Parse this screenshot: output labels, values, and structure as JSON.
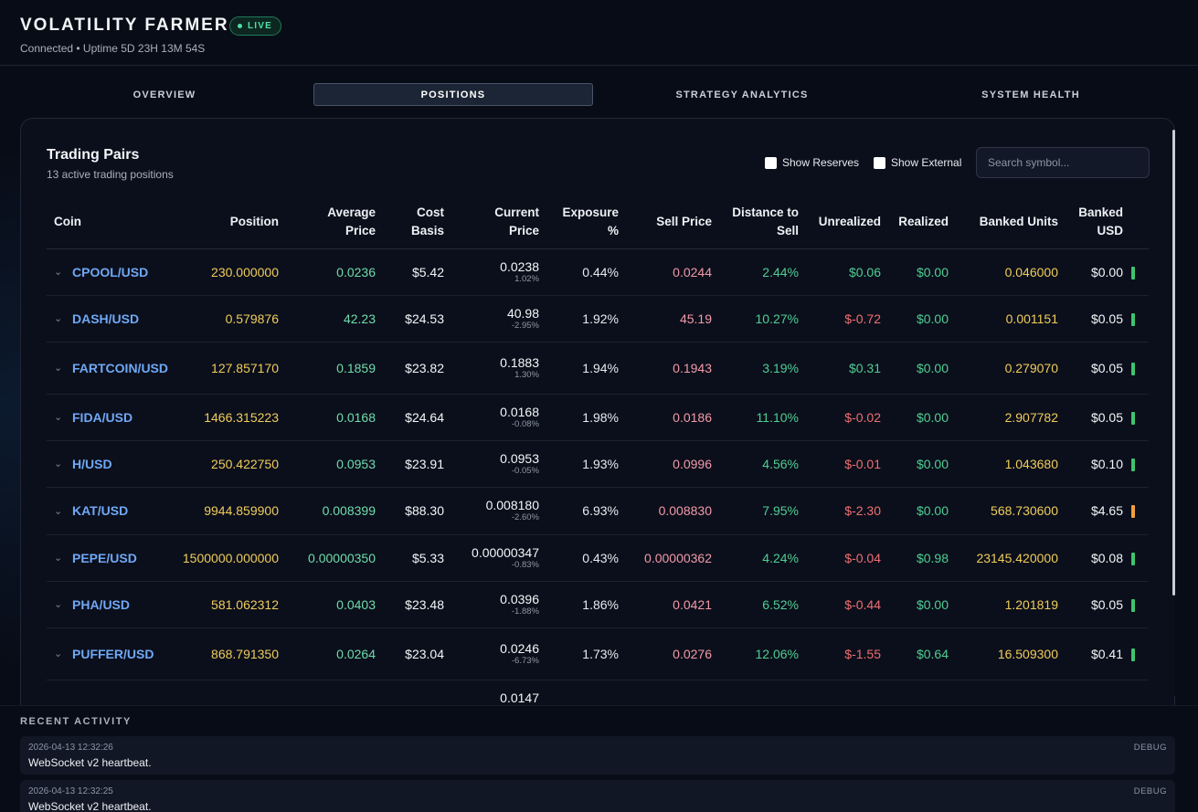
{
  "header": {
    "title": "VOLATILITY FARMER",
    "badge": "LIVE",
    "status": "Connected • Uptime 5D 23H 13M 54S"
  },
  "tabs": [
    {
      "label": "OVERVIEW",
      "active": false
    },
    {
      "label": "POSITIONS",
      "active": true
    },
    {
      "label": "STRATEGY ANALYTICS",
      "active": false
    },
    {
      "label": "SYSTEM HEALTH",
      "active": false
    }
  ],
  "panel": {
    "title": "Trading Pairs",
    "subtitle": "13 active trading positions",
    "show_reserves_label": "Show Reserves",
    "show_external_label": "Show External",
    "search_placeholder": "Search symbol..."
  },
  "columns": [
    "Coin",
    "Position",
    "Average Price",
    "Cost Basis",
    "Current Price",
    "Exposure %",
    "Sell Price",
    "Distance to Sell",
    "Unrealized",
    "Realized",
    "Banked Units",
    "Banked USD"
  ],
  "rows": [
    {
      "coin": "CPOOL/USD",
      "position": "230.000000",
      "avg": "0.0236",
      "cost": "$5.42",
      "cur": "0.0238",
      "cur_change": "1.02%",
      "exposure": "0.44%",
      "sell": "0.0244",
      "distance": "2.44%",
      "unrealized": "$0.06",
      "unrealized_sign": "pos",
      "realized": "$0.00",
      "banked_units": "0.046000",
      "banked_usd": "$0.00",
      "status_color": "#3ec46d"
    },
    {
      "coin": "DASH/USD",
      "position": "0.579876",
      "avg": "42.23",
      "cost": "$24.53",
      "cur": "40.98",
      "cur_change": "-2.95%",
      "exposure": "1.92%",
      "sell": "45.19",
      "distance": "10.27%",
      "unrealized": "$-0.72",
      "unrealized_sign": "neg",
      "realized": "$0.00",
      "banked_units": "0.001151",
      "banked_usd": "$0.05",
      "status_color": "#3ec46d"
    },
    {
      "coin": "FARTCOIN/USD",
      "position": "127.857170",
      "avg": "0.1859",
      "cost": "$23.82",
      "cur": "0.1883",
      "cur_change": "1.30%",
      "exposure": "1.94%",
      "sell": "0.1943",
      "distance": "3.19%",
      "unrealized": "$0.31",
      "unrealized_sign": "pos",
      "realized": "$0.00",
      "banked_units": "0.279070",
      "banked_usd": "$0.05",
      "status_color": "#3ec46d"
    },
    {
      "coin": "FIDA/USD",
      "position": "1466.315223",
      "avg": "0.0168",
      "cost": "$24.64",
      "cur": "0.0168",
      "cur_change": "-0.08%",
      "exposure": "1.98%",
      "sell": "0.0186",
      "distance": "11.10%",
      "unrealized": "$-0.02",
      "unrealized_sign": "neg",
      "realized": "$0.00",
      "banked_units": "2.907782",
      "banked_usd": "$0.05",
      "status_color": "#3ec46d"
    },
    {
      "coin": "H/USD",
      "position": "250.422750",
      "avg": "0.0953",
      "cost": "$23.91",
      "cur": "0.0953",
      "cur_change": "-0.05%",
      "exposure": "1.93%",
      "sell": "0.0996",
      "distance": "4.56%",
      "unrealized": "$-0.01",
      "unrealized_sign": "neg",
      "realized": "$0.00",
      "banked_units": "1.043680",
      "banked_usd": "$0.10",
      "status_color": "#3ec46d"
    },
    {
      "coin": "KAT/USD",
      "position": "9944.859900",
      "avg": "0.008399",
      "cost": "$88.30",
      "cur": "0.008180",
      "cur_change": "-2.60%",
      "exposure": "6.93%",
      "sell": "0.008830",
      "distance": "7.95%",
      "unrealized": "$-2.30",
      "unrealized_sign": "neg",
      "realized": "$0.00",
      "banked_units": "568.730600",
      "banked_usd": "$4.65",
      "status_color": "#f0a03c"
    },
    {
      "coin": "PEPE/USD",
      "position": "1500000.000000",
      "avg": "0.00000350",
      "cost": "$5.33",
      "cur": "0.00000347",
      "cur_change": "-0.83%",
      "exposure": "0.43%",
      "sell": "0.00000362",
      "distance": "4.24%",
      "unrealized": "$-0.04",
      "unrealized_sign": "neg",
      "realized": "$0.98",
      "banked_units": "23145.420000",
      "banked_usd": "$0.08",
      "status_color": "#3ec46d"
    },
    {
      "coin": "PHA/USD",
      "position": "581.062312",
      "avg": "0.0403",
      "cost": "$23.48",
      "cur": "0.0396",
      "cur_change": "-1.88%",
      "exposure": "1.86%",
      "sell": "0.0421",
      "distance": "6.52%",
      "unrealized": "$-0.44",
      "unrealized_sign": "neg",
      "realized": "$0.00",
      "banked_units": "1.201819",
      "banked_usd": "$0.05",
      "status_color": "#3ec46d"
    },
    {
      "coin": "PUFFER/USD",
      "position": "868.791350",
      "avg": "0.0264",
      "cost": "$23.04",
      "cur": "0.0246",
      "cur_change": "-6.73%",
      "exposure": "1.73%",
      "sell": "0.0276",
      "distance": "12.06%",
      "unrealized": "$-1.55",
      "unrealized_sign": "neg",
      "realized": "$0.64",
      "banked_units": "16.509300",
      "banked_usd": "$0.41",
      "status_color": "#3ec46d"
    },
    {
      "coin": "",
      "position": "",
      "avg": "",
      "cost": "",
      "cur": "0.0147",
      "cur_change": "",
      "exposure": "",
      "sell": "",
      "distance": "",
      "unrealized": "",
      "unrealized_sign": "pos",
      "realized": "",
      "banked_units": "",
      "banked_usd": "",
      "status_color": "#3ec46d"
    }
  ],
  "activity": {
    "title": "RECENT ACTIVITY",
    "entries": [
      {
        "time": "2026-04-13 12:32:26",
        "message": "WebSocket v2 heartbeat.",
        "level": "DEBUG"
      },
      {
        "time": "2026-04-13 12:32:25",
        "message": "WebSocket v2 heartbeat.",
        "level": "DEBUG"
      }
    ]
  }
}
